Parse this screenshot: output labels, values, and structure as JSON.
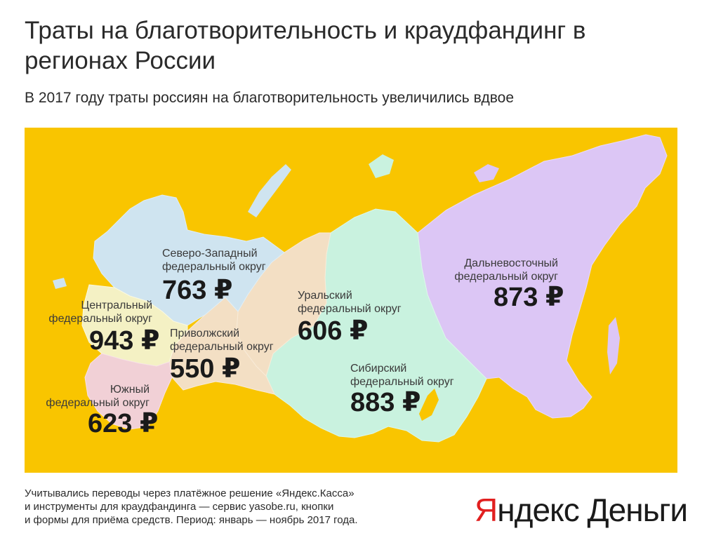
{
  "title": "Траты на благотворительность и краудфандинг в регионах России",
  "subtitle": "В 2017 году траты россиян на благотворительность увеличились вдвое",
  "colors": {
    "background": "#f9c500",
    "northwest": "#cfe4f0",
    "central": "#f4f1c4",
    "south": "#f1d0d6",
    "volga": "#f3dfc4",
    "ural": "#f3dfc4",
    "siberia": "#c9f2df",
    "fareast": "#dcc6f5",
    "logo_accent": "#e11f1f"
  },
  "regions": [
    {
      "id": "northwest",
      "name": "Северо-Западный федеральный округ",
      "line1": "Северо-Западный",
      "line2": "федеральный округ",
      "value": "763 ₽",
      "amount_rub": 763
    },
    {
      "id": "central",
      "name": "Центральный федеральный округ",
      "line1": "Центральный",
      "line2": "федеральный округ",
      "value": "943 ₽",
      "amount_rub": 943
    },
    {
      "id": "volga",
      "name": "Приволжский федеральный округ",
      "line1": "Приволжский",
      "line2": "федеральный округ",
      "value": "550 ₽",
      "amount_rub": 550
    },
    {
      "id": "ural",
      "name": "Уральский федеральный округ",
      "line1": "Уральский",
      "line2": "федеральный округ",
      "value": "606 ₽",
      "amount_rub": 606
    },
    {
      "id": "south",
      "name": "Южный федеральный округ",
      "line1": "Южный",
      "line2": "федеральный округ",
      "value": "623 ₽",
      "amount_rub": 623
    },
    {
      "id": "siberia",
      "name": "Сибирский федеральный округ",
      "line1": "Сибирский",
      "line2": "федеральный округ",
      "value": "883 ₽",
      "amount_rub": 883
    },
    {
      "id": "fareast",
      "name": "Дальневосточный федеральный округ",
      "line1": "Дальневосточный",
      "line2": "федеральный округ",
      "value": "873 ₽",
      "amount_rub": 873
    }
  ],
  "footnote": {
    "line1": "Учитывались переводы через платёжное решение «Яндекс.Касса»",
    "line2": "и инструменты для краудфандинга — сервис yasobe.ru, кнопки",
    "line3": "и формы для приёма средств. Период: январь — ноябрь 2017 года."
  },
  "logo": {
    "first_letter": "Я",
    "rest": "ндекс Деньги"
  }
}
